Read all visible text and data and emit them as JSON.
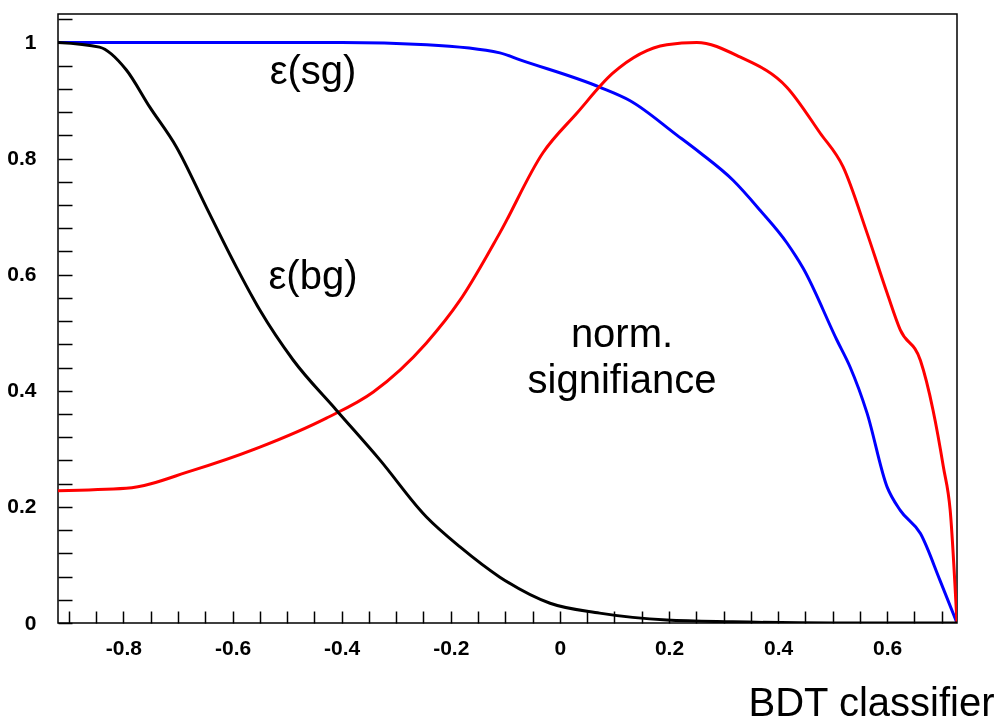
{
  "chart_data": {
    "type": "line",
    "xlabel": "BDT classifier",
    "xlim": [
      -0.92,
      0.728
    ],
    "ylim": [
      0,
      1.049
    ],
    "xticks": [
      -0.8,
      -0.6,
      -0.4,
      -0.2,
      0,
      0.2,
      0.4,
      0.6,
      {
        "value": -0.9,
        "label": null
      },
      {
        "value": -0.85,
        "label": null
      },
      {
        "value": -0.75,
        "label": null
      },
      {
        "value": -0.7,
        "label": null
      },
      {
        "value": -0.65,
        "label": null
      },
      {
        "value": -0.55,
        "label": null
      },
      {
        "value": -0.5,
        "label": null
      },
      {
        "value": -0.45,
        "label": null
      },
      {
        "value": -0.35,
        "label": null
      },
      {
        "value": -0.3,
        "label": null
      },
      {
        "value": -0.25,
        "label": null
      },
      {
        "value": -0.15,
        "label": null
      },
      {
        "value": -0.1,
        "label": null
      },
      {
        "value": -0.05,
        "label": null
      },
      {
        "value": 0.05,
        "label": null
      },
      {
        "value": 0.1,
        "label": null
      },
      {
        "value": 0.15,
        "label": null
      },
      {
        "value": 0.25,
        "label": null
      },
      {
        "value": 0.3,
        "label": null
      },
      {
        "value": 0.35,
        "label": null
      },
      {
        "value": 0.45,
        "label": null
      },
      {
        "value": 0.5,
        "label": null
      },
      {
        "value": 0.55,
        "label": null
      },
      {
        "value": 0.65,
        "label": null
      },
      {
        "value": 0.7,
        "label": null
      }
    ],
    "yticks": [
      0,
      0.2,
      0.4,
      0.6,
      0.8,
      1,
      {
        "value": 0.04,
        "label": null
      },
      {
        "value": 0.08,
        "label": null
      },
      {
        "value": 0.12,
        "label": null
      },
      {
        "value": 0.16,
        "label": null
      },
      {
        "value": 0.24,
        "label": null
      },
      {
        "value": 0.28,
        "label": null
      },
      {
        "value": 0.32,
        "label": null
      },
      {
        "value": 0.36,
        "label": null
      },
      {
        "value": 0.44,
        "label": null
      },
      {
        "value": 0.48,
        "label": null
      },
      {
        "value": 0.52,
        "label": null
      },
      {
        "value": 0.56,
        "label": null
      },
      {
        "value": 0.64,
        "label": null
      },
      {
        "value": 0.68,
        "label": null
      },
      {
        "value": 0.72,
        "label": null
      },
      {
        "value": 0.76,
        "label": null
      },
      {
        "value": 0.84,
        "label": null
      },
      {
        "value": 0.88,
        "label": null
      },
      {
        "value": 0.92,
        "label": null
      },
      {
        "value": 0.96,
        "label": null
      },
      {
        "value": 1.04,
        "label": null
      }
    ],
    "grid": false,
    "series": [
      {
        "color": "#0000ff",
        "x": [
          -0.92,
          -0.6,
          -0.4,
          -0.244,
          -0.11,
          -0.073,
          0.073,
          0.128,
          0.215,
          0.257,
          0.317,
          0.367,
          0.416,
          0.446,
          0.508,
          0.532,
          0.563,
          0.6,
          0.624,
          0.661,
          0.697,
          0.728
        ],
        "values": [
          1,
          1,
          1,
          0.996,
          0.982,
          0.97,
          0.923,
          0.9,
          0.84,
          0.81,
          0.763,
          0.711,
          0.655,
          0.611,
          0.487,
          0.441,
          0.362,
          0.234,
          0.194,
          0.154,
          0.073,
          0
        ]
      },
      {
        "color": "#ff0000",
        "x": [
          -0.92,
          -0.795,
          -0.673,
          -0.55,
          -0.428,
          -0.342,
          -0.245,
          -0.183,
          -0.11,
          -0.031,
          0.031,
          0.097,
          0.196,
          0.251,
          0.33,
          0.416,
          0.477,
          0.519,
          0.563,
          0.6,
          0.624,
          0.661,
          0.684,
          0.703,
          0.716,
          0.728
        ],
        "values": [
          0.228,
          0.232,
          0.263,
          0.303,
          0.353,
          0.398,
          0.482,
          0.556,
          0.672,
          0.81,
          0.878,
          0.947,
          0.996,
          1,
          0.975,
          0.923,
          0.844,
          0.786,
          0.672,
          0.568,
          0.505,
          0.452,
          0.367,
          0.269,
          0.189,
          0
        ]
      },
      {
        "color": "#000000",
        "x": [
          -0.92,
          -0.844,
          -0.795,
          -0.752,
          -0.703,
          -0.648,
          -0.593,
          -0.55,
          -0.489,
          -0.41,
          -0.33,
          -0.245,
          -0.183,
          -0.11,
          -0.018,
          0.073,
          0.196,
          0.317,
          0.5,
          0.728
        ],
        "values": [
          1,
          0.992,
          0.953,
          0.889,
          0.82,
          0.716,
          0.613,
          0.539,
          0.453,
          0.367,
          0.281,
          0.183,
          0.131,
          0.079,
          0.034,
          0.017,
          0.005,
          0.002,
          0,
          0
        ]
      }
    ],
    "annotations": [
      "ε(sg)",
      "ε(bg)",
      "norm.\nsignifiance"
    ]
  }
}
